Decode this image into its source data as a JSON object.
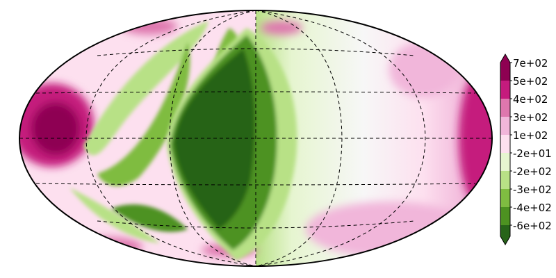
{
  "map": {
    "projection": "Hammer (Aitoff-type) equal-area, full globe",
    "graticule": {
      "meridians_deg": [
        -120,
        -60,
        0,
        60,
        120
      ],
      "parallels_deg": [
        -60,
        -30,
        0,
        30,
        60
      ],
      "style": "dashed black"
    },
    "colormap": "PiYG (magenta = positive, green = negative)",
    "colors": {
      "magenta_strong": "#8e0152",
      "magenta": "#c51b7d",
      "pink": "#de77ae",
      "pink_light": "#f1b6da",
      "pink_pale": "#fde0ef",
      "white": "#f7f7f7",
      "green_pale": "#e6f5d0",
      "green_light": "#b8e186",
      "green": "#7fbc41",
      "green_mid": "#4d9221",
      "green_strong": "#276419"
    }
  },
  "colorbar": {
    "extend": "both",
    "tick_labels": [
      "7e+02",
      "5e+02",
      "4e+02",
      "3e+02",
      "1e+02",
      "-2e+01",
      "-2e+02",
      "-3e+02",
      "-4e+02",
      "-6e+02"
    ]
  }
}
